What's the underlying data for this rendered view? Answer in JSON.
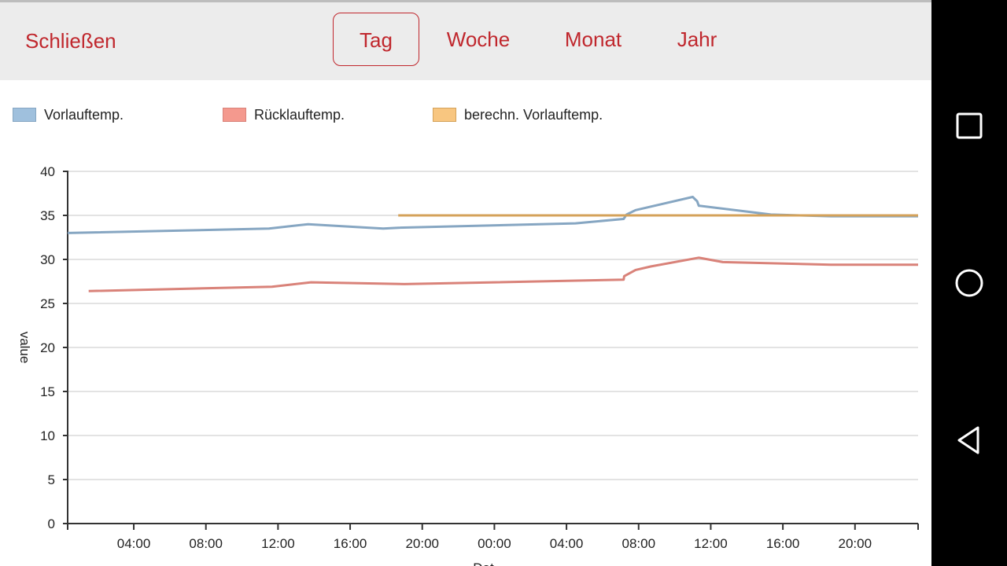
{
  "header": {
    "close_label": "Schließen",
    "tabs": [
      {
        "label": "Tag",
        "active": true
      },
      {
        "label": "Woche",
        "active": false
      },
      {
        "label": "Monat",
        "active": false
      },
      {
        "label": "Jahr",
        "active": false
      }
    ]
  },
  "colors": {
    "accent": "#c0272d",
    "vorlauf": "#86a6c2",
    "ruecklauf": "#d98279",
    "berechnet": "#d4a25a",
    "header_bg": "#ececec"
  },
  "legend": [
    {
      "label": "Vorlauftemp.",
      "fill": "#9fc0dd",
      "stroke": "#86a6c2"
    },
    {
      "label": "Rücklauftemp.",
      "fill": "#f4998e",
      "stroke": "#d98279"
    },
    {
      "label": "berechn. Vorlauftemp.",
      "fill": "#f8c680",
      "stroke": "#d4a25a"
    }
  ],
  "chart_data": {
    "type": "line",
    "title": "",
    "xlabel": "Dat",
    "ylabel": "value",
    "ylim": [
      0,
      40
    ],
    "yticks": [
      0,
      5,
      10,
      15,
      20,
      25,
      30,
      35,
      40
    ],
    "xlim": [
      "2024-01-01 00:20",
      "2024-01-02 23:30"
    ],
    "x_tick_labels": [
      "04:00",
      "08:00",
      "12:00",
      "16:00",
      "20:00",
      "00:00",
      "04:00",
      "08:00",
      "12:00",
      "16:00",
      "20:00"
    ],
    "x_tick_times": [
      "2024-01-01 04:00",
      "2024-01-01 08:00",
      "2024-01-01 12:00",
      "2024-01-01 16:00",
      "2024-01-01 20:00",
      "2024-01-02 00:00",
      "2024-01-02 04:00",
      "2024-01-02 08:00",
      "2024-01-02 12:00",
      "2024-01-02 16:00",
      "2024-01-02 20:00"
    ],
    "grid": true,
    "series": [
      {
        "name": "Vorlauftemp.",
        "x": [
          "2024-01-01 00:20",
          "2024-01-01 11:30",
          "2024-01-01 13:40",
          "2024-01-01 17:50",
          "2024-01-01 18:40",
          "2024-01-02 04:30",
          "2024-01-02 07:10",
          "2024-01-02 07:20",
          "2024-01-02 07:50",
          "2024-01-02 11:00",
          "2024-01-02 11:15",
          "2024-01-02 11:20",
          "2024-01-02 15:20",
          "2024-01-02 18:40",
          "2024-01-02 23:30"
        ],
        "y": [
          33.0,
          33.5,
          34.0,
          33.5,
          33.6,
          34.1,
          34.6,
          35.1,
          35.6,
          37.1,
          36.6,
          36.1,
          35.1,
          34.9,
          34.9
        ]
      },
      {
        "name": "Rücklauftemp.",
        "x": [
          "2024-01-01 01:30",
          "2024-01-01 11:40",
          "2024-01-01 13:50",
          "2024-01-01 19:00",
          "2024-01-02 07:10",
          "2024-01-02 07:12",
          "2024-01-02 07:50",
          "2024-01-02 08:40",
          "2024-01-02 11:20",
          "2024-01-02 12:40",
          "2024-01-02 18:40",
          "2024-01-02 23:30"
        ],
        "y": [
          26.4,
          26.9,
          27.4,
          27.2,
          27.7,
          28.1,
          28.8,
          29.2,
          30.2,
          29.7,
          29.4,
          29.4
        ]
      },
      {
        "name": "berechn. Vorlauftemp.",
        "x": [
          "2024-01-01 18:40",
          "2024-01-02 23:30"
        ],
        "y": [
          35.0,
          35.0
        ]
      }
    ]
  }
}
